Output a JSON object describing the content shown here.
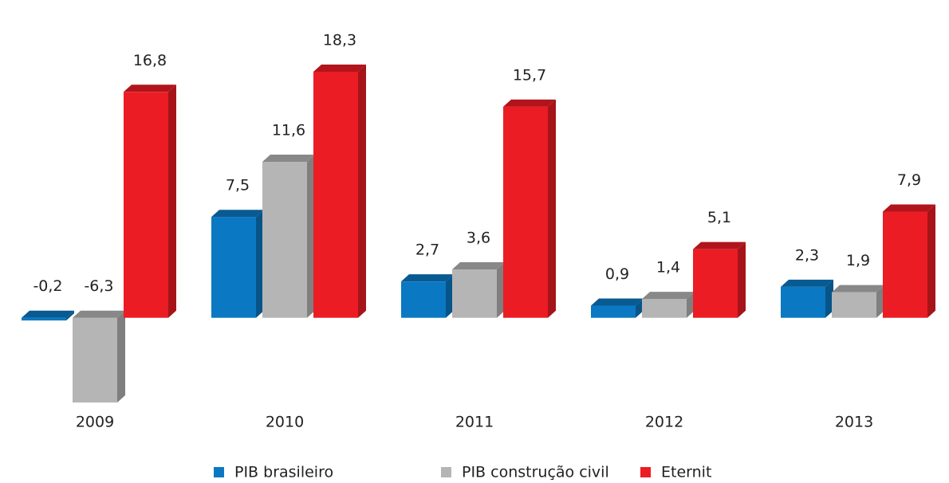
{
  "chart_data": {
    "type": "bar3d",
    "categories": [
      "2009",
      "2010",
      "2011",
      "2012",
      "2013"
    ],
    "series": [
      {
        "name": "PIB brasileiro",
        "color": "#0a78c2",
        "values": [
          -0.2,
          7.5,
          2.7,
          0.9,
          2.3
        ],
        "value_labels": [
          "-0,2",
          "7,5",
          "2,7",
          "0,9",
          "2,3"
        ]
      },
      {
        "name": "PIB construção civil",
        "color": "#b5b5b6",
        "values": [
          -6.3,
          11.6,
          3.6,
          1.4,
          1.9
        ],
        "value_labels": [
          "-6,3",
          "11,6",
          "3,6",
          "1,4",
          "1,9"
        ]
      },
      {
        "name": "Eternit",
        "color": "#ec1c24",
        "values": [
          16.8,
          18.3,
          15.7,
          5.1,
          7.9
        ],
        "value_labels": [
          "16,8",
          "18,3",
          "15,7",
          "5,1",
          "7,9"
        ]
      }
    ],
    "legend": "bottom"
  }
}
